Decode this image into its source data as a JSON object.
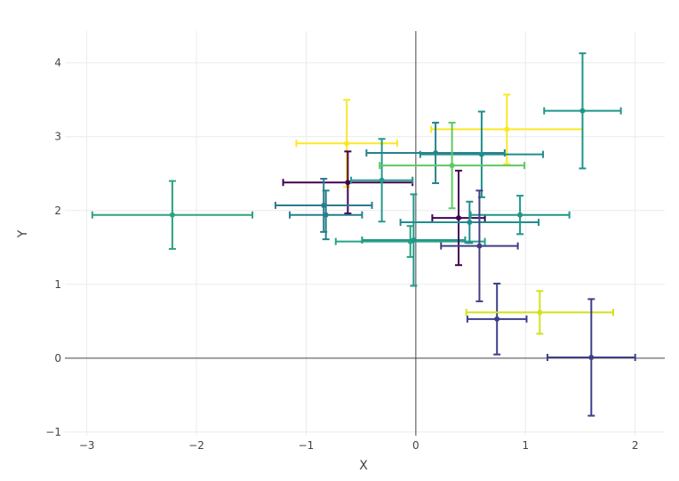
{
  "chart_data": {
    "type": "scatter",
    "title": "",
    "xlabel": "X",
    "ylabel": "Y",
    "xlim": [
      -3.2,
      2.27
    ],
    "ylim": [
      -1.05,
      4.43
    ],
    "xticks": [
      -3,
      -2,
      -1,
      0,
      1,
      2
    ],
    "yticks": [
      -1,
      0,
      1,
      2,
      3,
      4
    ],
    "xtick_labels": [
      "−3",
      "−2",
      "−1",
      "0",
      "1",
      "2"
    ],
    "ytick_labels": [
      "−1",
      "0",
      "1",
      "2",
      "3",
      "4"
    ],
    "grid": true,
    "zero_lines": true,
    "legend": "none",
    "error_bars": "x and y, symmetric",
    "points": [
      {
        "x": -2.22,
        "y": 1.94,
        "xerr": 0.73,
        "yerr": 0.46,
        "color": "#2ca37f"
      },
      {
        "x": -0.63,
        "y": 2.91,
        "xerr": 0.46,
        "yerr": 0.59,
        "color": "#fde725"
      },
      {
        "x": -0.62,
        "y": 2.38,
        "xerr": 0.59,
        "yerr": 0.42,
        "color": "#440154"
      },
      {
        "x": -0.31,
        "y": 2.41,
        "xerr": 0.28,
        "yerr": 0.56,
        "color": "#25998a"
      },
      {
        "x": -0.84,
        "y": 2.07,
        "xerr": 0.44,
        "yerr": 0.36,
        "color": "#2a7b8e"
      },
      {
        "x": -0.82,
        "y": 1.94,
        "xerr": 0.33,
        "yerr": 0.33,
        "color": "#277f8e"
      },
      {
        "x": -0.05,
        "y": 1.58,
        "xerr": 0.68,
        "yerr": 0.21,
        "color": "#25a584"
      },
      {
        "x": -0.02,
        "y": 1.6,
        "xerr": 0.47,
        "yerr": 0.62,
        "color": "#22978a"
      },
      {
        "x": 0.83,
        "y": 3.1,
        "xerr": 0.69,
        "yerr": 0.47,
        "color": "#fde725"
      },
      {
        "x": 0.18,
        "y": 2.78,
        "xerr": 0.63,
        "yerr": 0.41,
        "color": "#26828e"
      },
      {
        "x": 0.6,
        "y": 2.76,
        "xerr": 0.56,
        "yerr": 0.58,
        "color": "#218e8c"
      },
      {
        "x": 0.33,
        "y": 2.61,
        "xerr": 0.66,
        "yerr": 0.58,
        "color": "#5ec962"
      },
      {
        "x": 1.52,
        "y": 3.35,
        "xerr": 0.35,
        "yerr": 0.78,
        "color": "#1f968b"
      },
      {
        "x": 0.39,
        "y": 1.9,
        "xerr": 0.24,
        "yerr": 0.64,
        "color": "#440154"
      },
      {
        "x": 0.49,
        "y": 1.84,
        "xerr": 0.63,
        "yerr": 0.28,
        "color": "#228c8d"
      },
      {
        "x": 0.95,
        "y": 1.94,
        "xerr": 0.45,
        "yerr": 0.26,
        "color": "#1f968b"
      },
      {
        "x": 0.58,
        "y": 1.52,
        "xerr": 0.35,
        "yerr": 0.75,
        "color": "#433e85"
      },
      {
        "x": 0.74,
        "y": 0.53,
        "xerr": 0.27,
        "yerr": 0.48,
        "color": "#3b3f8a"
      },
      {
        "x": 1.13,
        "y": 0.62,
        "xerr": 0.67,
        "yerr": 0.29,
        "color": "#d2e21b"
      },
      {
        "x": 1.6,
        "y": 0.01,
        "xerr": 0.4,
        "yerr": 0.79,
        "color": "#3d3f88"
      }
    ]
  },
  "colors": {
    "grid": "#ebebeb",
    "zero_line": "#444444",
    "tick_text": "#444444"
  }
}
